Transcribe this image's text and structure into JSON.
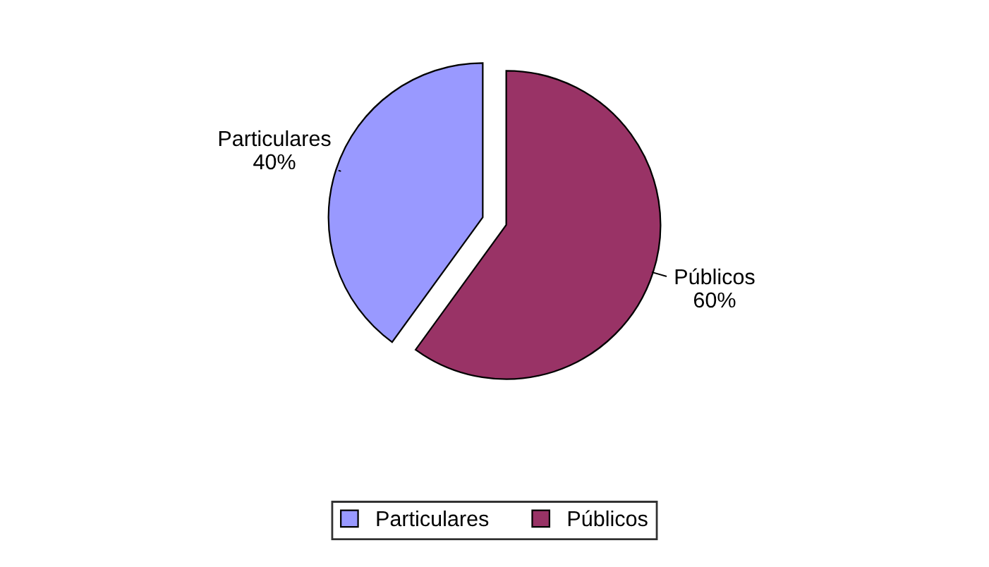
{
  "chart_data": {
    "type": "pie",
    "categories": [
      "Particulares",
      "Públicos"
    ],
    "values": [
      40,
      60
    ],
    "value_labels": [
      "40%",
      "60%"
    ],
    "colors": [
      "#9999ff",
      "#993366"
    ],
    "legend": "bottom"
  }
}
